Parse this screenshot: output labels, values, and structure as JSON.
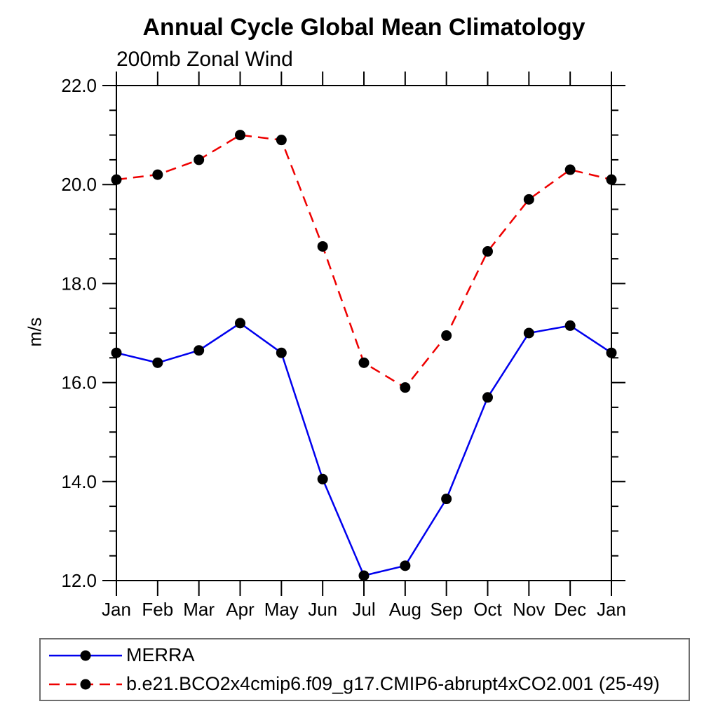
{
  "chart_data": {
    "type": "line",
    "title": "Annual Cycle Global Mean Climatology",
    "subtitle": "200mb Zonal Wind",
    "ylabel": "m/s",
    "xlabel": "",
    "categories": [
      "Jan",
      "Feb",
      "Mar",
      "Apr",
      "May",
      "Jun",
      "Jul",
      "Aug",
      "Sep",
      "Oct",
      "Nov",
      "Dec",
      "Jan"
    ],
    "ylim": [
      12.0,
      22.0
    ],
    "y_major_step": 2.0,
    "y_minor_step": 0.5,
    "y_tick_labels": [
      "12.0",
      "14.0",
      "16.0",
      "18.0",
      "20.0",
      "22.0"
    ],
    "grid": false,
    "legend_position": "bottom-left-box",
    "axis_color": "#000000",
    "series": [
      {
        "name": "MERRA",
        "color": "#0000ee",
        "line_style": "solid",
        "marker": "filled-circle",
        "marker_color": "#000000",
        "values": [
          16.6,
          16.4,
          16.65,
          17.2,
          16.6,
          14.05,
          12.1,
          12.3,
          13.65,
          15.7,
          17.0,
          17.15,
          16.6
        ]
      },
      {
        "name": "b.e21.BCO2x4cmip6.f09_g17.CMIP6-abrupt4xCO2.001 (25-49)",
        "color": "#ee0000",
        "line_style": "dashed",
        "marker": "filled-circle",
        "marker_color": "#000000",
        "values": [
          20.1,
          20.2,
          20.5,
          21.0,
          20.9,
          18.75,
          16.4,
          15.9,
          16.95,
          18.65,
          19.7,
          20.3,
          20.1
        ]
      }
    ]
  }
}
